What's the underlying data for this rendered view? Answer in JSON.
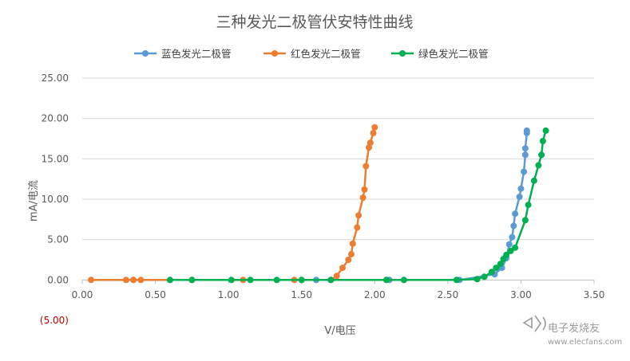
{
  "chart_data": {
    "type": "scatter",
    "title": "三种发光二极管伏安特性曲线",
    "xlabel": "V/电压",
    "ylabel": "mA/电流",
    "xlim": [
      0,
      3.5
    ],
    "ylim": [
      -5,
      25
    ],
    "xticks": [
      "0.00",
      "0.50",
      "1.00",
      "1.50",
      "2.00",
      "2.50",
      "3.00",
      "3.50"
    ],
    "yticks": [
      "(5.00)",
      "0.00",
      "5.00",
      "10.00",
      "15.00",
      "20.00",
      "25.00"
    ],
    "grid": "horizontal",
    "legend": "top",
    "series": [
      {
        "name": "蓝色发光二极管",
        "color": "#5b9bd5",
        "points": [
          [
            0.35,
            0
          ],
          [
            1.6,
            0
          ],
          [
            2.1,
            0
          ],
          [
            2.58,
            0
          ],
          [
            2.82,
            0.7
          ],
          [
            2.87,
            1.5
          ],
          [
            2.9,
            2.7
          ],
          [
            2.92,
            4.4
          ],
          [
            2.94,
            5.3
          ],
          [
            2.95,
            6.7
          ],
          [
            2.96,
            8.2
          ],
          [
            2.99,
            10.3
          ],
          [
            3.0,
            11.3
          ],
          [
            3.02,
            13.4
          ],
          [
            3.03,
            15.5
          ],
          [
            3.03,
            16.3
          ],
          [
            3.04,
            18.2
          ],
          [
            3.04,
            18.5
          ]
        ]
      },
      {
        "name": "红色发光二极管",
        "color": "#ed7d31",
        "points": [
          [
            0.06,
            0
          ],
          [
            0.3,
            0
          ],
          [
            0.35,
            0
          ],
          [
            0.4,
            0
          ],
          [
            0.75,
            0
          ],
          [
            1.1,
            0
          ],
          [
            1.45,
            0
          ],
          [
            1.7,
            0
          ],
          [
            1.74,
            0.5
          ],
          [
            1.78,
            1.5
          ],
          [
            1.82,
            2.5
          ],
          [
            1.84,
            3.2
          ],
          [
            1.85,
            4.5
          ],
          [
            1.88,
            6.5
          ],
          [
            1.89,
            8.0
          ],
          [
            1.92,
            10.2
          ],
          [
            1.93,
            11.2
          ],
          [
            1.94,
            14.1
          ],
          [
            1.96,
            16.4
          ],
          [
            1.97,
            17.0
          ],
          [
            1.99,
            18.2
          ],
          [
            2.0,
            18.9
          ]
        ]
      },
      {
        "name": "绿色发光二极管",
        "color": "#00b050",
        "points": [
          [
            0.6,
            0
          ],
          [
            0.75,
            0
          ],
          [
            1.02,
            0
          ],
          [
            1.15,
            0
          ],
          [
            1.33,
            0
          ],
          [
            1.5,
            0
          ],
          [
            1.7,
            0
          ],
          [
            2.08,
            0
          ],
          [
            2.2,
            0
          ],
          [
            2.56,
            0
          ],
          [
            2.7,
            0.1
          ],
          [
            2.75,
            0.4
          ],
          [
            2.8,
            1.0
          ],
          [
            2.83,
            1.5
          ],
          [
            2.86,
            2.0
          ],
          [
            2.88,
            2.6
          ],
          [
            2.9,
            3.1
          ],
          [
            2.93,
            3.6
          ],
          [
            2.96,
            4.0
          ],
          [
            3.03,
            7.4
          ],
          [
            3.05,
            9.3
          ],
          [
            3.09,
            12.3
          ],
          [
            3.12,
            14.2
          ],
          [
            3.14,
            15.5
          ],
          [
            3.15,
            17.2
          ],
          [
            3.17,
            18.5
          ]
        ]
      }
    ]
  },
  "watermark": {
    "text": "电子发烧友",
    "url": "www.elecfans.com"
  }
}
